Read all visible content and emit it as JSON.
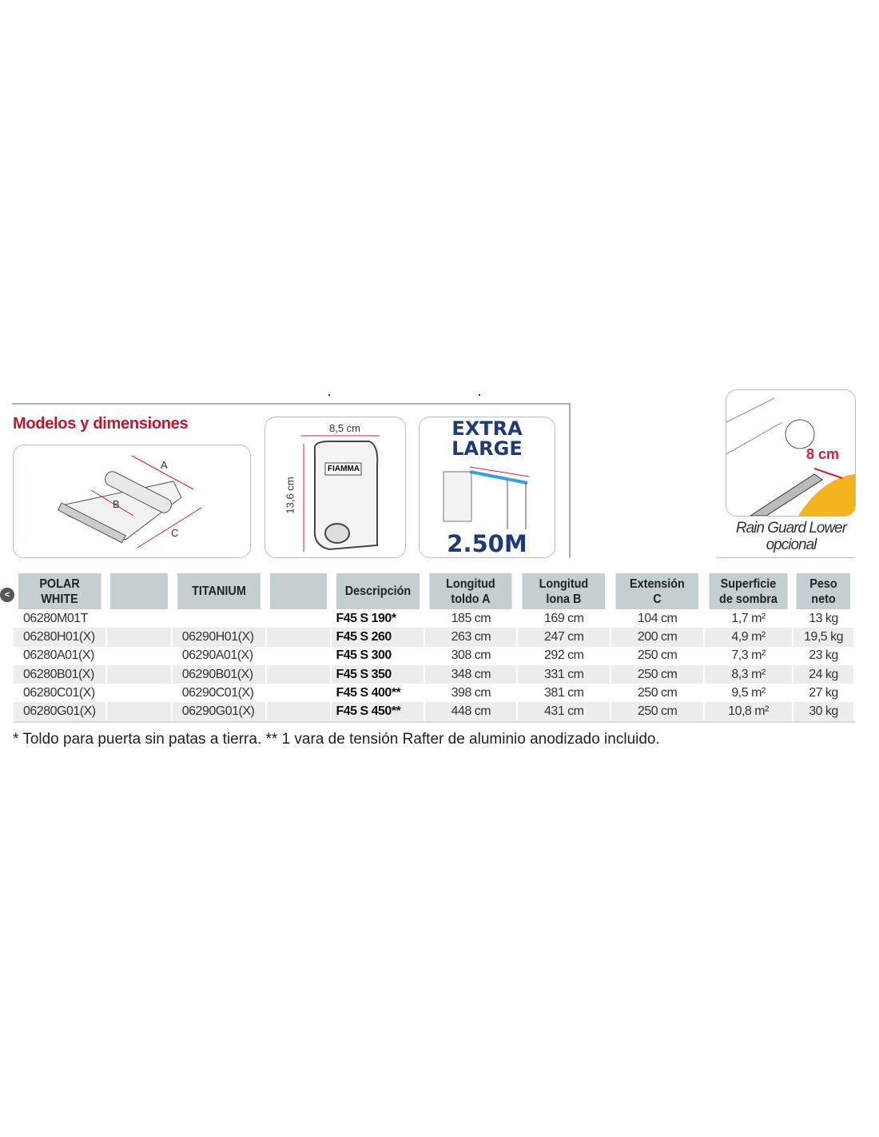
{
  "section_title": "Modelos y dimensiones",
  "figures": {
    "awning_labels": {
      "a": "A",
      "b": "B",
      "c": "C"
    },
    "cassette": {
      "width": "8,5 cm",
      "height": "13,6 cm",
      "brand": "FIAMMA"
    },
    "extra_large": {
      "line1": "EXTRA",
      "line2": "LARGE",
      "size": "2.50M"
    },
    "rain_guard": {
      "measure": "8 cm",
      "caption_line1": "Rain Guard Lower",
      "caption_line2": "opcional"
    }
  },
  "table": {
    "headers": [
      "POLAR WHITE",
      "",
      "TITANIUM",
      "",
      "Descripción",
      "Longitud toldo A",
      "Longitud lona B",
      "Extensión C",
      "Superficie de sombra",
      "Peso neto"
    ],
    "header_lines": [
      [
        "POLAR",
        "WHITE"
      ],
      [
        ""
      ],
      [
        "TITANIUM"
      ],
      [
        ""
      ],
      [
        "Descripción"
      ],
      [
        "Longitud",
        "toldo A"
      ],
      [
        "Longitud",
        "lona B"
      ],
      [
        "Extensión",
        "C"
      ],
      [
        "Superficie",
        "de sombra"
      ],
      [
        "Peso",
        "neto"
      ]
    ],
    "rows": [
      [
        "06280M01T",
        "",
        "",
        "",
        "F45 S 190*",
        "185 cm",
        "169 cm",
        "104 cm",
        "1,7 m²",
        "13 kg"
      ],
      [
        "06280H01(X)",
        "",
        "06290H01(X)",
        "",
        "F45 S 260",
        "263 cm",
        "247 cm",
        "200 cm",
        "4,9 m²",
        "19,5 kg"
      ],
      [
        "06280A01(X)",
        "",
        "06290A01(X)",
        "",
        "F45 S 300",
        "308 cm",
        "292 cm",
        "250 cm",
        "7,3 m²",
        "23 kg"
      ],
      [
        "06280B01(X)",
        "",
        "06290B01(X)",
        "",
        "F45 S 350",
        "348 cm",
        "331 cm",
        "250 cm",
        "8,3 m²",
        "24 kg"
      ],
      [
        "06280C01(X)",
        "",
        "06290C01(X)",
        "",
        "F45 S 400**",
        "398 cm",
        "381 cm",
        "250 cm",
        "9,5 m²",
        "27 kg"
      ],
      [
        "06280G01(X)",
        "",
        "06290G01(X)",
        "",
        "F45 S 450**",
        "448 cm",
        "431 cm",
        "250 cm",
        "10,8 m²",
        "30 kg"
      ]
    ]
  },
  "footnote": "* Toldo para puerta sin patas a tierra. ** 1 vara de tensión Rafter de aluminio anodizado incluido.",
  "nav_icon": "chevron-left-icon",
  "colors": {
    "title_red": "#c0172c",
    "header_bg": "#c3cfd1",
    "xl_blue": "#1f3a7a",
    "measure_red": "#d0203a",
    "rain_guard_yellow": "#f2b31c"
  }
}
